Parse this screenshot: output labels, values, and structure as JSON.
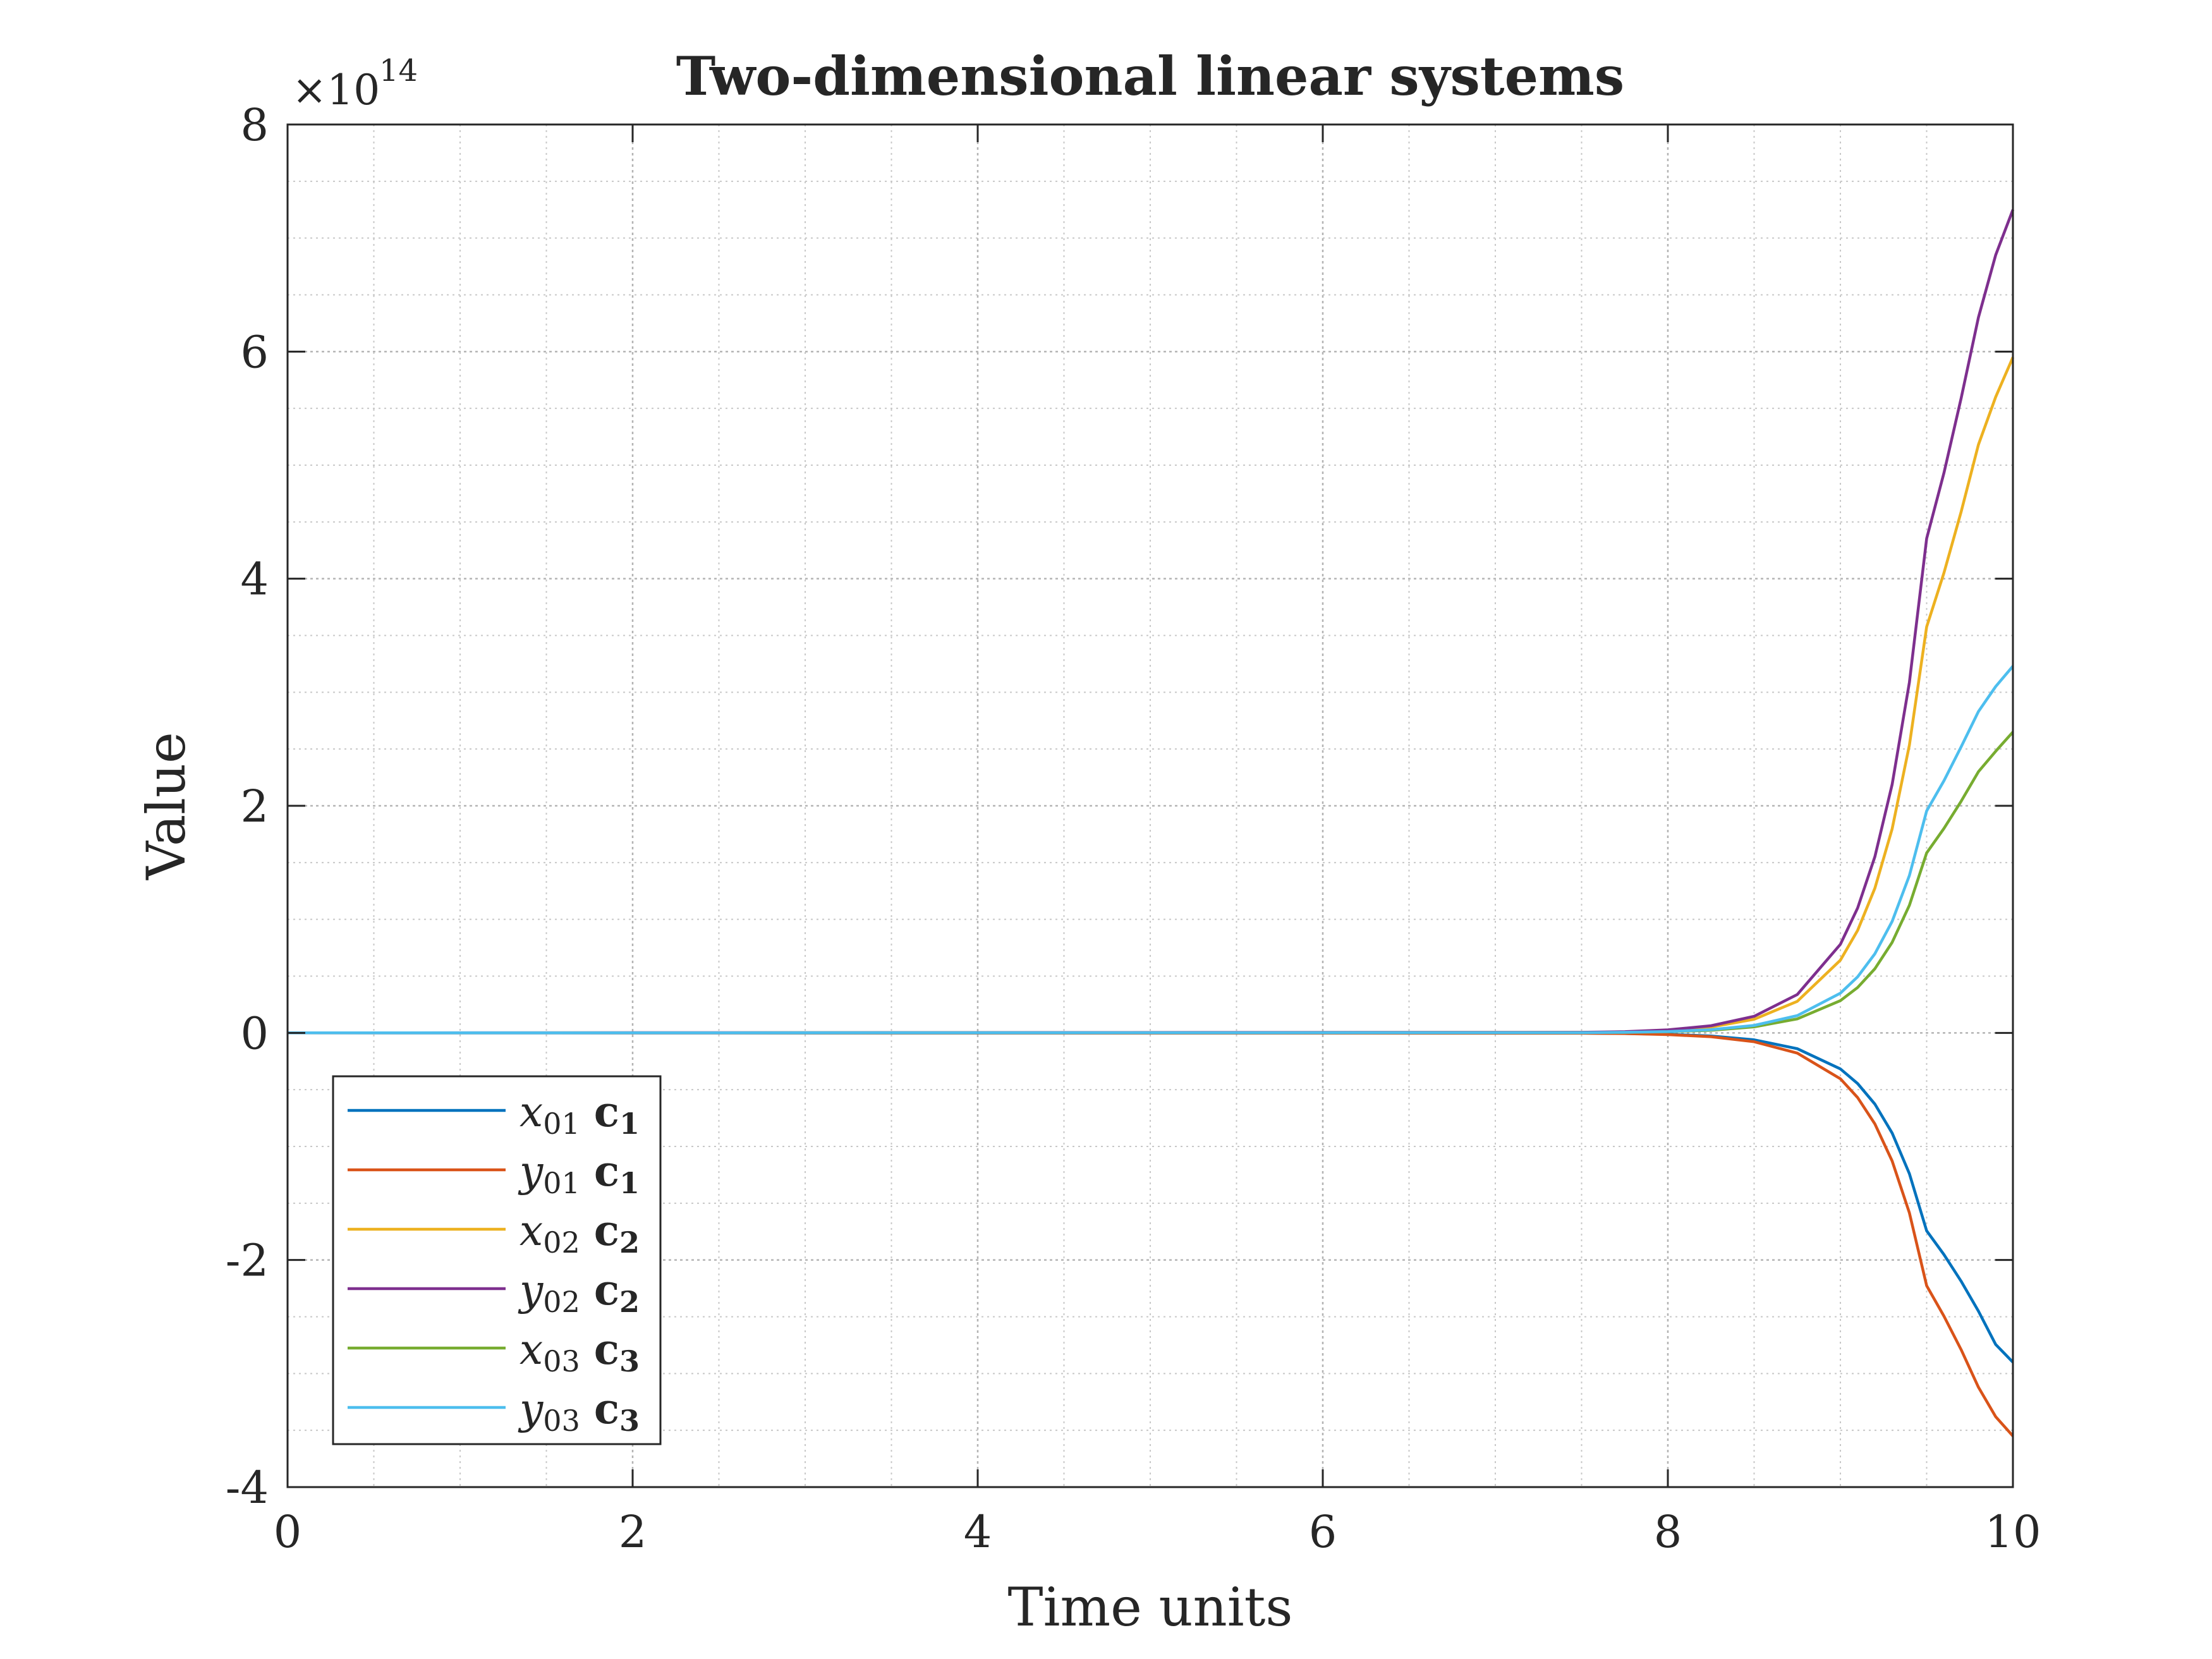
{
  "chart_data": {
    "type": "line",
    "title": "Two-dimensional linear systems",
    "xlabel": "Time units",
    "ylabel": "Value",
    "exponent_label": "×10",
    "exponent_power": "14",
    "xlim": [
      0,
      10
    ],
    "ylim": [
      -4,
      8
    ],
    "y_scale_factor": 100000000000000.0,
    "xticks": [
      0,
      2,
      4,
      6,
      8,
      10
    ],
    "xtick_labels": [
      "0",
      "2",
      "4",
      "6",
      "8",
      "10"
    ],
    "yticks": [
      -4,
      -2,
      0,
      2,
      4,
      6,
      8
    ],
    "ytick_labels": [
      "-4",
      "-2",
      "0",
      "2",
      "4",
      "6",
      "8"
    ],
    "grid": true,
    "minor_grid": true,
    "legend_position": "bottom-left",
    "x": [
      0,
      7.5,
      7.75,
      8.0,
      8.25,
      8.5,
      8.75,
      9.0,
      9.1,
      9.2,
      9.3,
      9.4,
      9.5,
      9.6,
      9.7,
      9.8,
      9.9,
      10.0
    ],
    "series": [
      {
        "name_main": "x",
        "name_sub": "01",
        "name_coef": "c",
        "name_coef_sub": "1",
        "color": "#0072BD",
        "values": [
          0,
          -0.002,
          -0.005,
          -0.012,
          -0.027,
          -0.061,
          -0.139,
          -0.317,
          -0.446,
          -0.627,
          -0.882,
          -1.24,
          -1.743,
          -1.952,
          -2.187,
          -2.45,
          -2.744,
          -2.9
        ]
      },
      {
        "name_main": "y",
        "name_sub": "01",
        "name_coef": "c",
        "name_coef_sub": "1",
        "color": "#D95319",
        "values": [
          0,
          -0.003,
          -0.006,
          -0.015,
          -0.034,
          -0.078,
          -0.178,
          -0.404,
          -0.57,
          -0.802,
          -1.128,
          -1.585,
          -2.226,
          -2.494,
          -2.79,
          -3.12,
          -3.38,
          -3.55
        ]
      },
      {
        "name_main": "x",
        "name_sub": "02",
        "name_coef": "c",
        "name_coef_sub": "2",
        "color": "#EDB120",
        "values": [
          0,
          0.004,
          0.009,
          0.022,
          0.052,
          0.12,
          0.278,
          0.64,
          0.903,
          1.274,
          1.797,
          2.535,
          3.576,
          4.05,
          4.59,
          5.18,
          5.6,
          5.95
        ]
      },
      {
        "name_main": "y",
        "name_sub": "02",
        "name_coef": "c",
        "name_coef_sub": "2",
        "color": "#7E2F8E",
        "values": [
          0,
          0.005,
          0.011,
          0.027,
          0.063,
          0.146,
          0.338,
          0.78,
          1.1,
          1.552,
          2.188,
          3.087,
          4.354,
          4.93,
          5.59,
          6.3,
          6.85,
          7.25
        ]
      },
      {
        "name_main": "x",
        "name_sub": "03",
        "name_coef": "c",
        "name_coef_sub": "3",
        "color": "#77AC30",
        "values": [
          0,
          0.002,
          0.004,
          0.01,
          0.023,
          0.053,
          0.123,
          0.284,
          0.4,
          0.565,
          0.797,
          1.124,
          1.585,
          1.8,
          2.04,
          2.3,
          2.48,
          2.65
        ]
      },
      {
        "name_main": "y",
        "name_sub": "03",
        "name_coef": "c",
        "name_coef_sub": "3",
        "color": "#4DBEEE",
        "values": [
          0,
          0.002,
          0.005,
          0.012,
          0.028,
          0.066,
          0.152,
          0.35,
          0.494,
          0.697,
          0.982,
          1.386,
          1.955,
          2.22,
          2.52,
          2.83,
          3.05,
          3.23
        ]
      }
    ]
  }
}
